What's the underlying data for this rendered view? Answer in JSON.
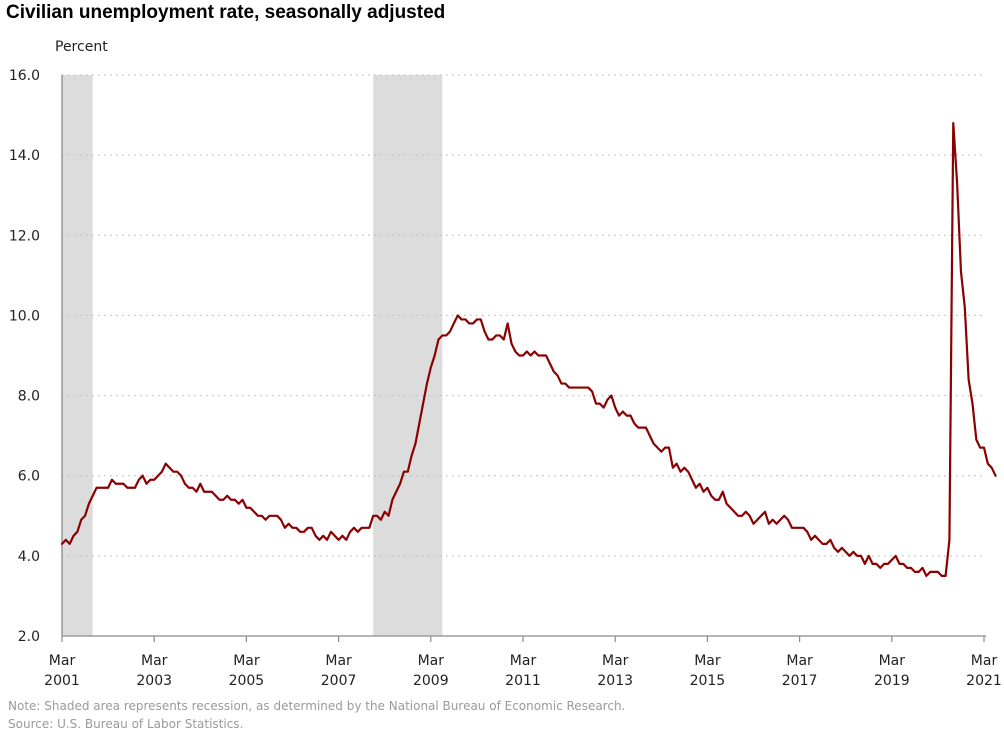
{
  "chart_data": {
    "type": "line",
    "title": "Civilian unemployment rate, seasonally adjusted",
    "ylabel": "Percent",
    "xlabel": "",
    "ylim": [
      2.0,
      16.0
    ],
    "yticks": [
      "16.0",
      "14.0",
      "12.0",
      "10.0",
      "8.0",
      "6.0",
      "4.0",
      "2.0"
    ],
    "xlim": [
      "2001-03",
      "2021-03"
    ],
    "xticks": [
      {
        "line1": "Mar",
        "line2": "2001"
      },
      {
        "line1": "Mar",
        "line2": "2003"
      },
      {
        "line1": "Mar",
        "line2": "2005"
      },
      {
        "line1": "Mar",
        "line2": "2007"
      },
      {
        "line1": "Mar",
        "line2": "2009"
      },
      {
        "line1": "Mar",
        "line2": "2011"
      },
      {
        "line1": "Mar",
        "line2": "2013"
      },
      {
        "line1": "Mar",
        "line2": "2015"
      },
      {
        "line1": "Mar",
        "line2": "2017"
      },
      {
        "line1": "Mar",
        "line2": "2019"
      },
      {
        "line1": "Mar",
        "line2": "2021"
      }
    ],
    "grid": "horizontal dotted",
    "line_color": "#8b0000",
    "recession_color": "#dcdcdc",
    "recessions": [
      {
        "start": "2001-03",
        "end": "2001-11"
      },
      {
        "start": "2007-12",
        "end": "2009-06"
      }
    ],
    "series": [
      {
        "start": "2001-03",
        "values": [
          4.3,
          4.4,
          4.3,
          4.5,
          4.6,
          4.9,
          5.0,
          5.3,
          5.5,
          5.7,
          5.7,
          5.7,
          5.7,
          5.9,
          5.8,
          5.8,
          5.8,
          5.7,
          5.7,
          5.7,
          5.9,
          6.0,
          5.8,
          5.9,
          5.9,
          6.0,
          6.1,
          6.3,
          6.2,
          6.1,
          6.1,
          6.0,
          5.8,
          5.7,
          5.7,
          5.6,
          5.8,
          5.6,
          5.6,
          5.6,
          5.5,
          5.4,
          5.4,
          5.5,
          5.4,
          5.4,
          5.3,
          5.4,
          5.2,
          5.2,
          5.1,
          5.0,
          5.0,
          4.9,
          5.0,
          5.0,
          5.0,
          4.9,
          4.7,
          4.8,
          4.7,
          4.7,
          4.6,
          4.6,
          4.7,
          4.7,
          4.5,
          4.4,
          4.5,
          4.4,
          4.6,
          4.5,
          4.4,
          4.5,
          4.4,
          4.6,
          4.7,
          4.6,
          4.7,
          4.7,
          4.7,
          5.0,
          5.0,
          4.9,
          5.1,
          5.0,
          5.4,
          5.6,
          5.8,
          6.1,
          6.1,
          6.5,
          6.8,
          7.3,
          7.8,
          8.3,
          8.7,
          9.0,
          9.4,
          9.5,
          9.5,
          9.6,
          9.8,
          10.0,
          9.9,
          9.9,
          9.8,
          9.8,
          9.9,
          9.9,
          9.6,
          9.4,
          9.4,
          9.5,
          9.5,
          9.4,
          9.8,
          9.3,
          9.1,
          9.0,
          9.0,
          9.1,
          9.0,
          9.1,
          9.0,
          9.0,
          9.0,
          8.8,
          8.6,
          8.5,
          8.3,
          8.3,
          8.2,
          8.2,
          8.2,
          8.2,
          8.2,
          8.2,
          8.1,
          7.8,
          7.8,
          7.7,
          7.9,
          8.0,
          7.7,
          7.5,
          7.6,
          7.5,
          7.5,
          7.3,
          7.2,
          7.2,
          7.2,
          7.0,
          6.8,
          6.7,
          6.6,
          6.7,
          6.7,
          6.2,
          6.3,
          6.1,
          6.2,
          6.1,
          5.9,
          5.7,
          5.8,
          5.6,
          5.7,
          5.5,
          5.4,
          5.4,
          5.6,
          5.3,
          5.2,
          5.1,
          5.0,
          5.0,
          5.1,
          5.0,
          4.8,
          4.9,
          5.0,
          5.1,
          4.8,
          4.9,
          4.8,
          4.9,
          5.0,
          4.9,
          4.7,
          4.7,
          4.7,
          4.7,
          4.6,
          4.4,
          4.5,
          4.4,
          4.3,
          4.3,
          4.4,
          4.2,
          4.1,
          4.2,
          4.1,
          4.0,
          4.1,
          4.0,
          4.0,
          3.8,
          4.0,
          3.8,
          3.8,
          3.7,
          3.8,
          3.8,
          3.9,
          4.0,
          3.8,
          3.8,
          3.7,
          3.7,
          3.6,
          3.6,
          3.7,
          3.5,
          3.6,
          3.6,
          3.6,
          3.5,
          3.5,
          4.4,
          14.8,
          13.3,
          11.1,
          10.2,
          8.4,
          7.8,
          6.9,
          6.7,
          6.7,
          6.3,
          6.2,
          6.0
        ]
      }
    ]
  },
  "footer": {
    "note": "Note: Shaded area represents recession, as determined by the National Bureau of Economic Research.",
    "source": "Source: U.S. Bureau of Labor Statistics."
  }
}
